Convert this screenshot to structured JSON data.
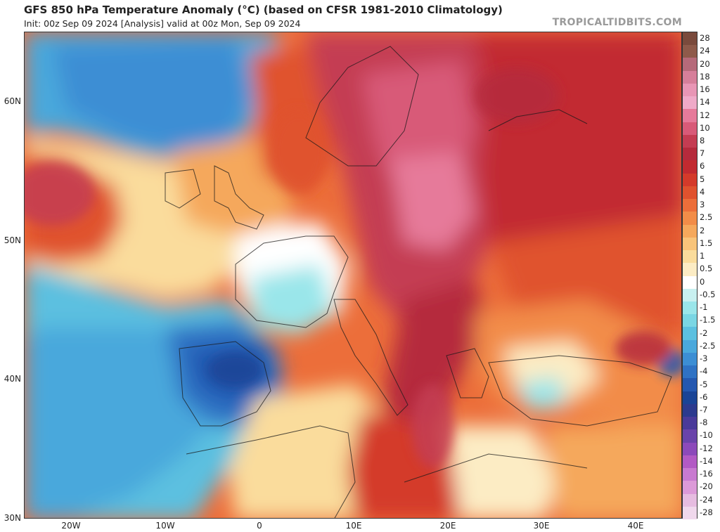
{
  "header": {
    "title": "GFS 850 hPa Temperature Anomaly (°C) (based on CFSR 1981-2010 Climatology)",
    "subtitle": "Init: 00z Sep 09 2024   [Analysis]   valid at 00z Mon, Sep 09 2024",
    "brand": "TROPICALTIDBITS.COM"
  },
  "axes": {
    "lat_labels": [
      "60N",
      "50N",
      "40N",
      "30N"
    ],
    "lon_labels": [
      "20W",
      "10W",
      "0",
      "10E",
      "20E",
      "30E",
      "40E"
    ]
  },
  "colorbar": {
    "labels": [
      "28",
      "24",
      "20",
      "18",
      "16",
      "14",
      "12",
      "10",
      "8",
      "7",
      "6",
      "5",
      "4",
      "3",
      "2.5",
      "2",
      "1.5",
      "1",
      "0.5",
      "0",
      "-0.5",
      "-1",
      "-1.5",
      "-2",
      "-2.5",
      "-3",
      "-4",
      "-5",
      "-6",
      "-7",
      "-8",
      "-10",
      "-12",
      "-14",
      "-16",
      "-20",
      "-24",
      "-28"
    ],
    "colors": [
      "#7a4a3c",
      "#8e5a4a",
      "#b56a7a",
      "#d67f9a",
      "#e896b5",
      "#efaac8",
      "#e67a9a",
      "#d85a78",
      "#c43c52",
      "#b52a3c",
      "#c22a30",
      "#d43a2a",
      "#e0522e",
      "#ec6e3a",
      "#f28c48",
      "#f5a85c",
      "#f8c47a",
      "#fadc9c",
      "#fcecc4",
      "#ffffff",
      "#c8f0f0",
      "#9ae6ea",
      "#7ad6e4",
      "#5cc0e0",
      "#4aa8dc",
      "#3c8ed4",
      "#2f72c4",
      "#2458b0",
      "#1a4496",
      "#2c3a8e",
      "#4a3a9a",
      "#6a44aa",
      "#8c4aba",
      "#b25ac4",
      "#c87ad0",
      "#dc9ad8",
      "#e6bce0",
      "#f0d8ec"
    ]
  },
  "map_regions": [
    {
      "name": "north-atlantic-cold-anomaly",
      "color": "#3c8ed4"
    },
    {
      "name": "iberia-cold-anomaly",
      "color": "#2f72c4"
    },
    {
      "name": "central-europe-warm-anomaly",
      "color": "#c43c52"
    },
    {
      "name": "scandinavia-warm-anomaly",
      "color": "#d85a78"
    },
    {
      "name": "eastern-europe-warm-anomaly",
      "color": "#d43a2a"
    },
    {
      "name": "france-neutral",
      "color": "#ffffff"
    }
  ]
}
